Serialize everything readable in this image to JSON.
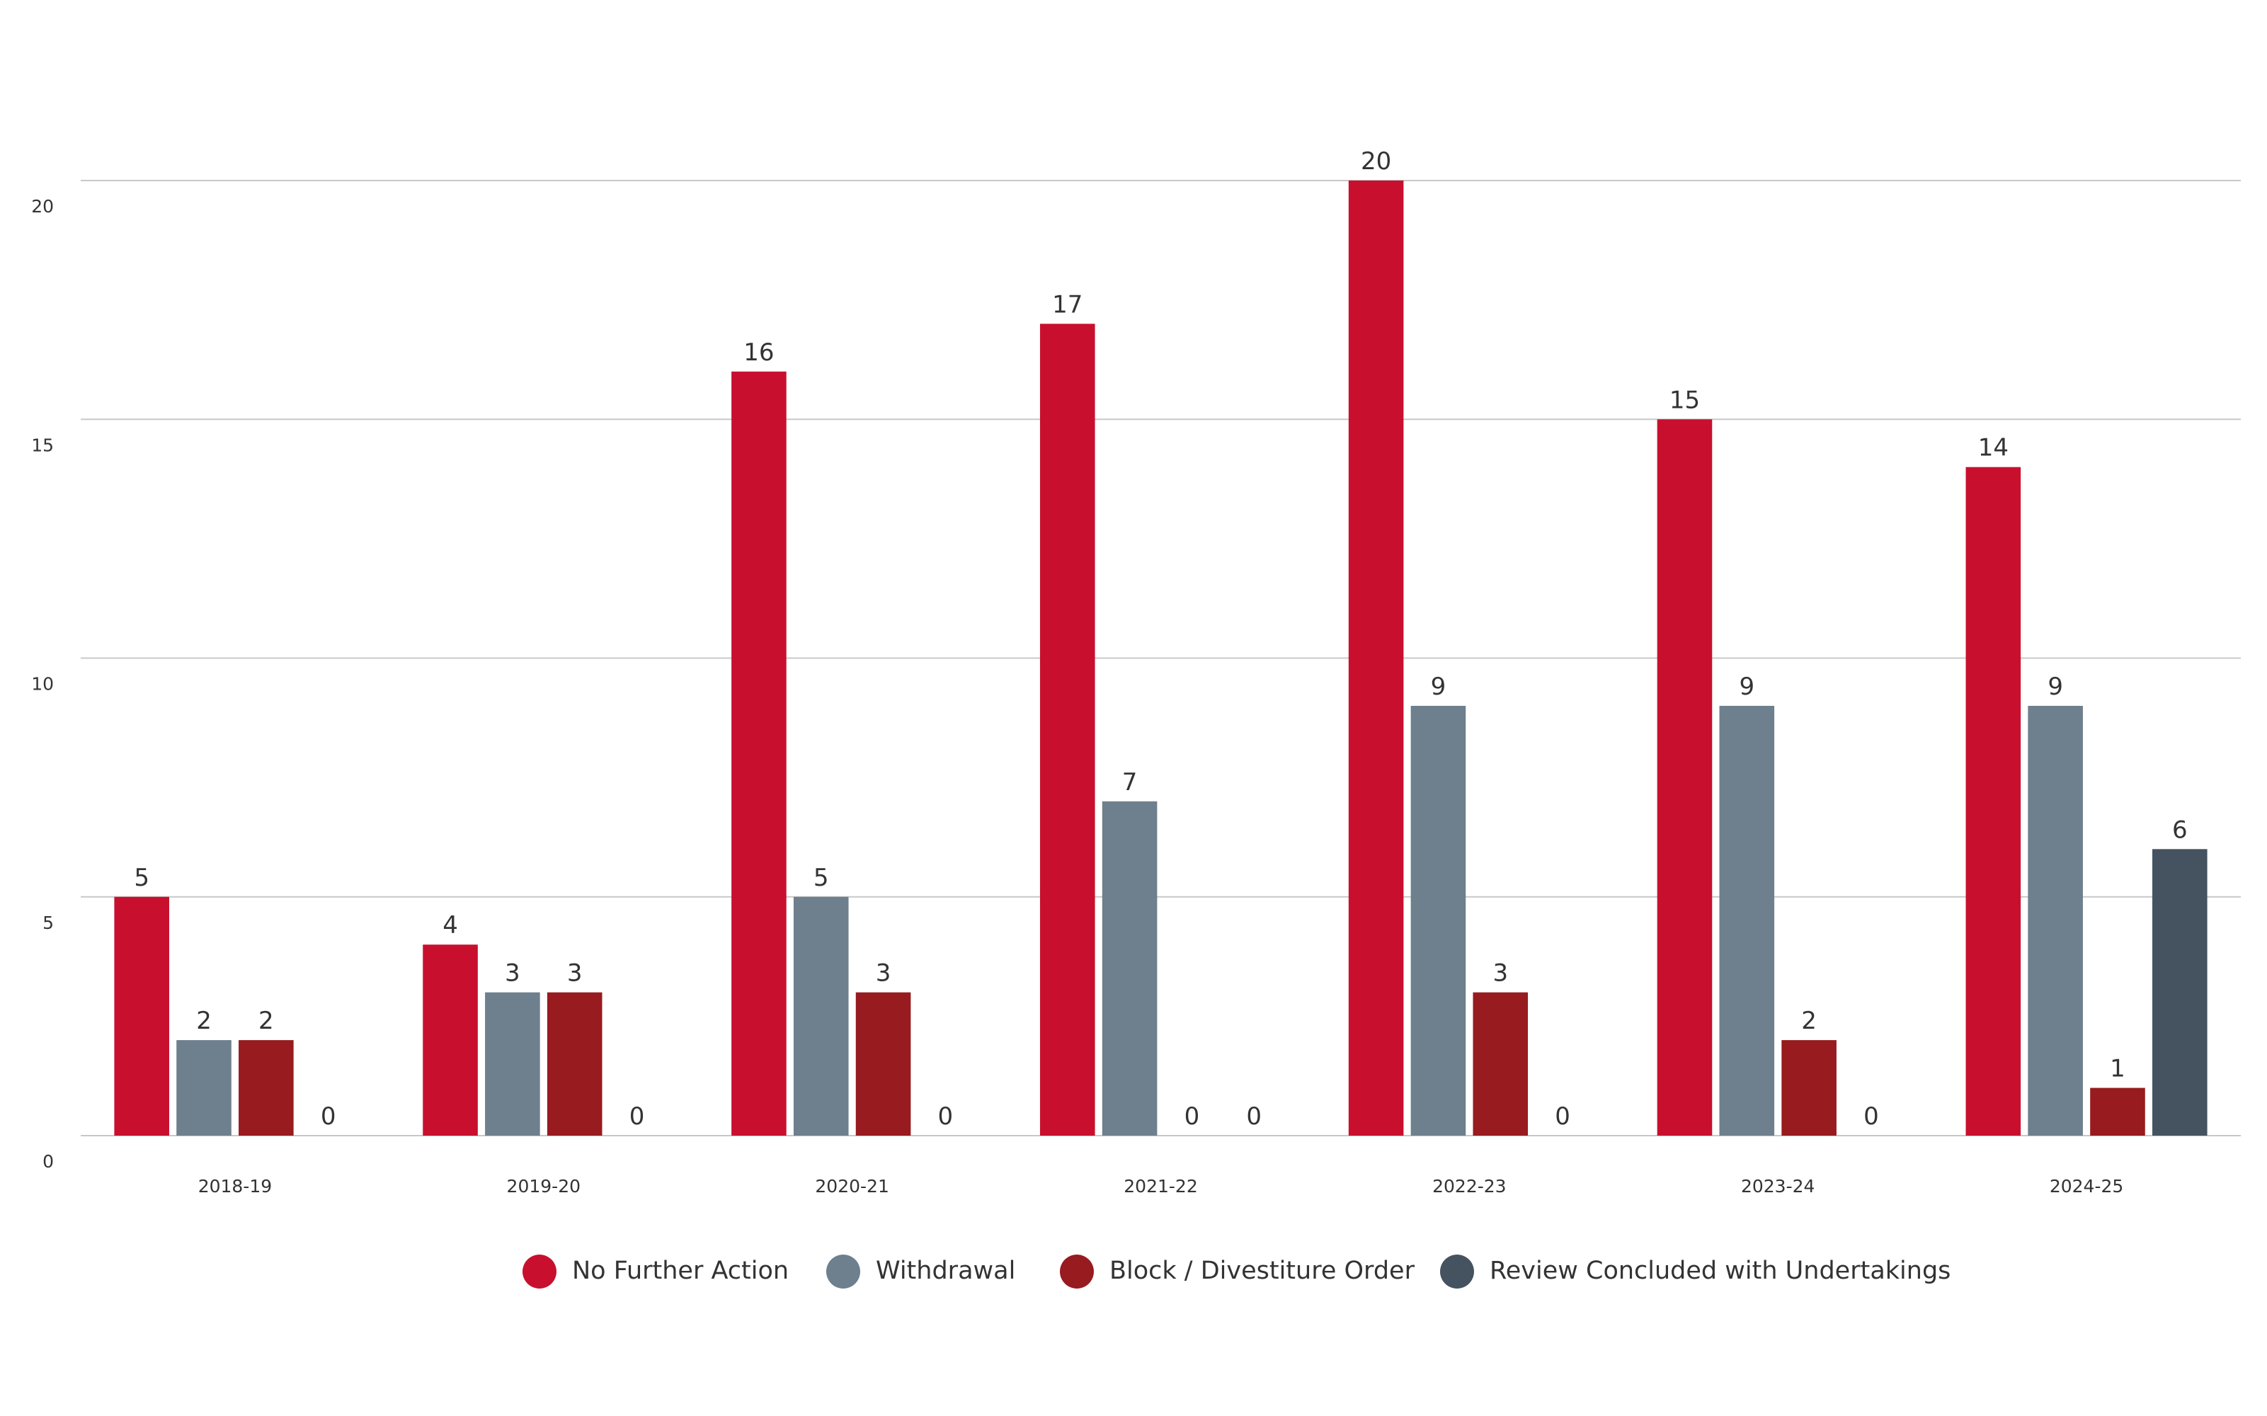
{
  "chart_data": {
    "type": "bar",
    "categories": [
      "2018-19",
      "2019-20",
      "2020-21",
      "2021-22",
      "2022-23",
      "2023-24",
      "2024-25"
    ],
    "series": [
      {
        "name": "No Further Action",
        "color": "#c8102e",
        "values": [
          5,
          4,
          16,
          17,
          20,
          15,
          14
        ]
      },
      {
        "name": "Withdrawal",
        "color": "#6e7f8d",
        "values": [
          2,
          3,
          5,
          7,
          9,
          9,
          9
        ]
      },
      {
        "name": "Block / Divestiture Order",
        "color": "#971b1f",
        "values": [
          2,
          3,
          3,
          0,
          3,
          2,
          1
        ]
      },
      {
        "name": "Review Concluded with Undertakings",
        "color": "#44535f",
        "values": [
          0,
          0,
          0,
          0,
          0,
          0,
          6
        ]
      }
    ],
    "ylim": [
      0,
      20
    ],
    "yticks": [
      0,
      5,
      10,
      15,
      20
    ],
    "grid": true
  }
}
